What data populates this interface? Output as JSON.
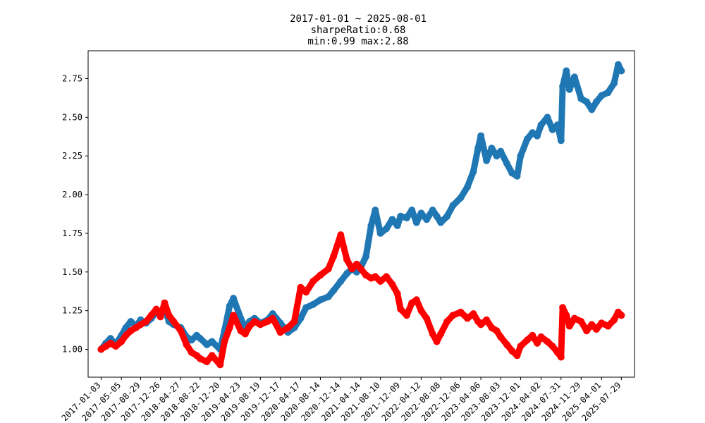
{
  "chart_data": {
    "type": "scatter",
    "title_lines": [
      "2017-01-01 ~ 2025-08-01",
      "sharpeRatio:0.68",
      "min:0.99 max:2.88"
    ],
    "xlabel": "",
    "ylabel": "",
    "ylim": [
      0.82,
      2.93
    ],
    "xlim": [
      "2016-10-17",
      "2025-10-16"
    ],
    "y_ticks": [
      1.0,
      1.25,
      1.5,
      1.75,
      2.0,
      2.25,
      2.5,
      2.75
    ],
    "y_tick_labels": [
      "1.00",
      "1.25",
      "1.50",
      "1.75",
      "2.00",
      "2.25",
      "2.50",
      "2.75"
    ],
    "x_tick_labels": [
      "2017-01-03",
      "2017-05-05",
      "2017-08-29",
      "2017-12-26",
      "2018-04-27",
      "2018-08-22",
      "2018-12-20",
      "2019-04-23",
      "2019-08-19",
      "2019-12-17",
      "2020-04-17",
      "2020-08-14",
      "2020-12-14",
      "2021-04-14",
      "2021-08-10",
      "2021-12-09",
      "2022-04-12",
      "2022-08-08",
      "2022-12-06",
      "2023-04-06",
      "2023-08-03",
      "2023-12-01",
      "2024-04-02",
      "2024-07-31",
      "2024-11-29",
      "2025-04-01",
      "2025-07-29"
    ],
    "grid": false,
    "legend": "none",
    "series": [
      {
        "color": "#1f77b4",
        "points": [
          [
            "2017-01-03",
            1.0
          ],
          [
            "2017-02-01",
            1.04
          ],
          [
            "2017-03-01",
            1.07
          ],
          [
            "2017-04-01",
            1.03
          ],
          [
            "2017-05-05",
            1.09
          ],
          [
            "2017-06-01",
            1.14
          ],
          [
            "2017-07-01",
            1.18
          ],
          [
            "2017-08-01",
            1.15
          ],
          [
            "2017-08-29",
            1.19
          ],
          [
            "2017-10-01",
            1.17
          ],
          [
            "2017-11-01",
            1.2
          ],
          [
            "2017-12-01",
            1.24
          ],
          [
            "2017-12-26",
            1.22
          ],
          [
            "2018-01-20",
            1.27
          ],
          [
            "2018-02-15",
            1.18
          ],
          [
            "2018-03-15",
            1.16
          ],
          [
            "2018-04-27",
            1.14
          ],
          [
            "2018-06-01",
            1.08
          ],
          [
            "2018-07-01",
            1.06
          ],
          [
            "2018-08-01",
            1.09
          ],
          [
            "2018-08-22",
            1.07
          ],
          [
            "2018-10-01",
            1.03
          ],
          [
            "2018-11-01",
            1.05
          ],
          [
            "2018-12-20",
            1.0
          ],
          [
            "2019-01-15",
            1.12
          ],
          [
            "2019-02-15",
            1.28
          ],
          [
            "2019-03-10",
            1.33
          ],
          [
            "2019-04-23",
            1.2
          ],
          [
            "2019-05-20",
            1.14
          ],
          [
            "2019-06-15",
            1.18
          ],
          [
            "2019-07-15",
            1.2
          ],
          [
            "2019-08-19",
            1.17
          ],
          [
            "2019-10-01",
            1.19
          ],
          [
            "2019-11-01",
            1.23
          ],
          [
            "2019-12-17",
            1.17
          ],
          [
            "2020-02-01",
            1.11
          ],
          [
            "2020-03-10",
            1.14
          ],
          [
            "2020-04-17",
            1.2
          ],
          [
            "2020-05-20",
            1.27
          ],
          [
            "2020-07-01",
            1.29
          ],
          [
            "2020-08-14",
            1.32
          ],
          [
            "2020-10-01",
            1.34
          ],
          [
            "2020-11-01",
            1.38
          ],
          [
            "2020-12-14",
            1.44
          ],
          [
            "2021-01-20",
            1.49
          ],
          [
            "2021-02-20",
            1.52
          ],
          [
            "2021-03-20",
            1.5
          ],
          [
            "2021-04-14",
            1.53
          ],
          [
            "2021-05-15",
            1.6
          ],
          [
            "2021-06-15",
            1.8
          ],
          [
            "2021-07-10",
            1.9
          ],
          [
            "2021-08-10",
            1.75
          ],
          [
            "2021-09-15",
            1.78
          ],
          [
            "2021-10-20",
            1.84
          ],
          [
            "2021-11-20",
            1.8
          ],
          [
            "2021-12-09",
            1.86
          ],
          [
            "2022-01-15",
            1.85
          ],
          [
            "2022-02-15",
            1.9
          ],
          [
            "2022-03-15",
            1.82
          ],
          [
            "2022-04-12",
            1.88
          ],
          [
            "2022-05-15",
            1.84
          ],
          [
            "2022-06-20",
            1.9
          ],
          [
            "2022-07-15",
            1.86
          ],
          [
            "2022-08-08",
            1.82
          ],
          [
            "2022-09-15",
            1.86
          ],
          [
            "2022-10-20",
            1.93
          ],
          [
            "2022-12-06",
            1.98
          ],
          [
            "2023-01-15",
            2.05
          ],
          [
            "2023-02-20",
            2.15
          ],
          [
            "2023-03-20",
            2.3
          ],
          [
            "2023-04-06",
            2.38
          ],
          [
            "2023-05-10",
            2.22
          ],
          [
            "2023-06-10",
            2.3
          ],
          [
            "2023-07-10",
            2.25
          ],
          [
            "2023-08-03",
            2.28
          ],
          [
            "2023-09-10",
            2.2
          ],
          [
            "2023-10-10",
            2.14
          ],
          [
            "2023-11-10",
            2.12
          ],
          [
            "2023-12-01",
            2.25
          ],
          [
            "2024-01-10",
            2.36
          ],
          [
            "2024-02-10",
            2.4
          ],
          [
            "2024-03-10",
            2.38
          ],
          [
            "2024-04-02",
            2.45
          ],
          [
            "2024-05-10",
            2.5
          ],
          [
            "2024-06-10",
            2.42
          ],
          [
            "2024-07-10",
            2.45
          ],
          [
            "2024-07-31",
            2.35
          ],
          [
            "2024-08-10",
            2.7
          ],
          [
            "2024-09-01",
            2.8
          ],
          [
            "2024-09-20",
            2.68
          ],
          [
            "2024-10-20",
            2.76
          ],
          [
            "2024-11-29",
            2.62
          ],
          [
            "2025-01-01",
            2.6
          ],
          [
            "2025-02-01",
            2.55
          ],
          [
            "2025-03-01",
            2.6
          ],
          [
            "2025-04-01",
            2.64
          ],
          [
            "2025-05-10",
            2.66
          ],
          [
            "2025-06-15",
            2.72
          ],
          [
            "2025-07-10",
            2.84
          ],
          [
            "2025-07-29",
            2.8
          ]
        ]
      },
      {
        "color": "#ff0000",
        "points": [
          [
            "2017-01-03",
            1.0
          ],
          [
            "2017-02-01",
            1.02
          ],
          [
            "2017-03-01",
            1.04
          ],
          [
            "2017-04-01",
            1.02
          ],
          [
            "2017-05-05",
            1.05
          ],
          [
            "2017-06-01",
            1.09
          ],
          [
            "2017-07-01",
            1.12
          ],
          [
            "2017-08-01",
            1.14
          ],
          [
            "2017-08-29",
            1.16
          ],
          [
            "2017-10-01",
            1.18
          ],
          [
            "2017-11-01",
            1.22
          ],
          [
            "2017-12-01",
            1.26
          ],
          [
            "2017-12-26",
            1.21
          ],
          [
            "2018-01-20",
            1.3
          ],
          [
            "2018-02-15",
            1.22
          ],
          [
            "2018-03-15",
            1.18
          ],
          [
            "2018-04-27",
            1.12
          ],
          [
            "2018-06-01",
            1.03
          ],
          [
            "2018-07-01",
            0.98
          ],
          [
            "2018-08-01",
            0.96
          ],
          [
            "2018-08-22",
            0.94
          ],
          [
            "2018-10-01",
            0.92
          ],
          [
            "2018-11-01",
            0.96
          ],
          [
            "2018-12-20",
            0.9
          ],
          [
            "2019-01-15",
            1.05
          ],
          [
            "2019-02-15",
            1.14
          ],
          [
            "2019-03-10",
            1.22
          ],
          [
            "2019-04-23",
            1.12
          ],
          [
            "2019-05-20",
            1.1
          ],
          [
            "2019-06-15",
            1.15
          ],
          [
            "2019-07-15",
            1.18
          ],
          [
            "2019-08-19",
            1.16
          ],
          [
            "2019-10-01",
            1.18
          ],
          [
            "2019-11-01",
            1.2
          ],
          [
            "2019-12-17",
            1.11
          ],
          [
            "2020-02-01",
            1.14
          ],
          [
            "2020-03-10",
            1.18
          ],
          [
            "2020-04-17",
            1.4
          ],
          [
            "2020-05-20",
            1.37
          ],
          [
            "2020-07-01",
            1.44
          ],
          [
            "2020-08-14",
            1.48
          ],
          [
            "2020-10-01",
            1.52
          ],
          [
            "2020-11-01",
            1.6
          ],
          [
            "2020-12-14",
            1.74
          ],
          [
            "2021-01-20",
            1.58
          ],
          [
            "2021-02-20",
            1.52
          ],
          [
            "2021-03-20",
            1.55
          ],
          [
            "2021-04-14",
            1.52
          ],
          [
            "2021-05-15",
            1.48
          ],
          [
            "2021-06-15",
            1.46
          ],
          [
            "2021-07-10",
            1.47
          ],
          [
            "2021-08-10",
            1.44
          ],
          [
            "2021-09-15",
            1.47
          ],
          [
            "2021-10-20",
            1.42
          ],
          [
            "2021-11-20",
            1.36
          ],
          [
            "2021-12-09",
            1.26
          ],
          [
            "2022-01-15",
            1.22
          ],
          [
            "2022-02-15",
            1.3
          ],
          [
            "2022-03-15",
            1.32
          ],
          [
            "2022-04-12",
            1.25
          ],
          [
            "2022-05-15",
            1.2
          ],
          [
            "2022-06-20",
            1.1
          ],
          [
            "2022-07-15",
            1.05
          ],
          [
            "2022-08-08",
            1.1
          ],
          [
            "2022-09-15",
            1.18
          ],
          [
            "2022-10-20",
            1.22
          ],
          [
            "2022-12-06",
            1.24
          ],
          [
            "2023-01-15",
            1.2
          ],
          [
            "2023-02-20",
            1.23
          ],
          [
            "2023-03-20",
            1.18
          ],
          [
            "2023-04-06",
            1.16
          ],
          [
            "2023-05-10",
            1.19
          ],
          [
            "2023-06-10",
            1.14
          ],
          [
            "2023-07-10",
            1.12
          ],
          [
            "2023-08-03",
            1.08
          ],
          [
            "2023-09-10",
            1.03
          ],
          [
            "2023-10-10",
            0.99
          ],
          [
            "2023-11-10",
            0.96
          ],
          [
            "2023-12-01",
            1.02
          ],
          [
            "2024-01-10",
            1.06
          ],
          [
            "2024-02-10",
            1.09
          ],
          [
            "2024-03-10",
            1.04
          ],
          [
            "2024-04-02",
            1.08
          ],
          [
            "2024-05-10",
            1.05
          ],
          [
            "2024-06-10",
            1.02
          ],
          [
            "2024-07-10",
            0.98
          ],
          [
            "2024-07-31",
            0.95
          ],
          [
            "2024-08-10",
            1.27
          ],
          [
            "2024-09-01",
            1.22
          ],
          [
            "2024-09-20",
            1.15
          ],
          [
            "2024-10-20",
            1.2
          ],
          [
            "2024-11-29",
            1.18
          ],
          [
            "2025-01-01",
            1.12
          ],
          [
            "2025-02-01",
            1.16
          ],
          [
            "2025-03-01",
            1.13
          ],
          [
            "2025-04-01",
            1.17
          ],
          [
            "2025-05-10",
            1.15
          ],
          [
            "2025-06-15",
            1.19
          ],
          [
            "2025-07-10",
            1.24
          ],
          [
            "2025-07-29",
            1.22
          ]
        ]
      }
    ]
  }
}
